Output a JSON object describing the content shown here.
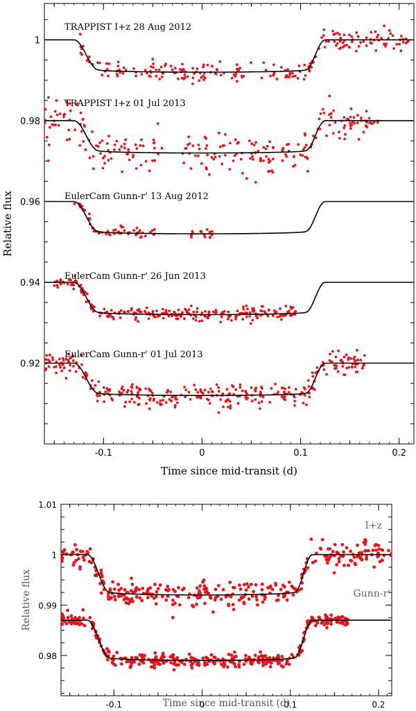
{
  "colors": {
    "points": "#e8141b",
    "model": "#000000",
    "axis": "#000000"
  },
  "chart_data": [
    {
      "type": "scatter",
      "title": "",
      "xlabel": "Time since mid-transit (d)",
      "ylabel": "Relative flux",
      "xlim": [
        -0.16,
        0.215
      ],
      "ylim": [
        0.9,
        1.009
      ],
      "xticks": [
        -0.1,
        0,
        0.1,
        0.2
      ],
      "xtick_labels": [
        "-0.1",
        "0",
        "0.1",
        "0.2"
      ],
      "yticks": [
        0.92,
        0.94,
        0.96,
        0.98,
        1.0
      ],
      "ytick_labels": [
        "0.92",
        "0.94",
        "0.96",
        "0.98",
        "1"
      ],
      "model": {
        "transit_depth": 0.008,
        "t_ingress_start": -0.13,
        "t_full_start": -0.105,
        "t_full_end": 0.105,
        "t_egress_end": 0.125
      },
      "series": [
        {
          "name": "TRAPPIST I+z 28 Aug 2012",
          "offset": 1.0,
          "data_start": -0.125,
          "data_end": 0.21,
          "scatter": 0.0012,
          "n_points": 230
        },
        {
          "name": "TRAPPIST I+z 01 Jul 2013",
          "offset": 0.98,
          "data_start": -0.16,
          "data_end": 0.18,
          "scatter": 0.0022,
          "n_points": 270,
          "gap": [
            -0.04,
            -0.02
          ]
        },
        {
          "name": "EulerCam Gunn-r' 13 Aug 2012",
          "offset": 0.96,
          "data_start": -0.13,
          "data_end": 0.015,
          "scatter": 0.0007,
          "n_points": 95,
          "gap": [
            -0.045,
            -0.015
          ]
        },
        {
          "name": "EulerCam Gunn-r' 26 Jun 2013",
          "offset": 0.94,
          "data_start": -0.15,
          "data_end": 0.095,
          "scatter": 0.0008,
          "n_points": 260
        },
        {
          "name": "EulerCam Gunn-r' 01 Jul 2013",
          "offset": 0.92,
          "data_start": -0.16,
          "data_end": 0.165,
          "scatter": 0.0015,
          "n_points": 330
        }
      ]
    },
    {
      "type": "scatter",
      "title": "",
      "xlabel": "Time since mid-transit (d)",
      "ylabel": "Relative flux",
      "xlim": [
        -0.16,
        0.215
      ],
      "ylim": [
        0.972,
        1.01
      ],
      "xticks": [
        -0.1,
        0,
        0.1,
        0.2
      ],
      "xtick_labels": [
        "-0.1",
        "0",
        "0.1",
        "0.2"
      ],
      "yticks": [
        0.98,
        0.99,
        1.0,
        1.01
      ],
      "ytick_labels": [
        "0.98",
        "0.99",
        "1",
        "1.01"
      ],
      "model": {
        "transit_depth": 0.008,
        "t_ingress_start": -0.13,
        "t_full_start": -0.105,
        "t_full_end": 0.105,
        "t_egress_end": 0.125
      },
      "series": [
        {
          "name": "I+z",
          "offset": 1.0,
          "data_start": -0.16,
          "data_end": 0.215,
          "scatter": 0.0012,
          "n_points": 330
        },
        {
          "name": "Gunn-r'",
          "offset": 0.987,
          "data_start": -0.16,
          "data_end": 0.165,
          "scatter": 0.0006,
          "n_points": 380
        }
      ]
    }
  ]
}
